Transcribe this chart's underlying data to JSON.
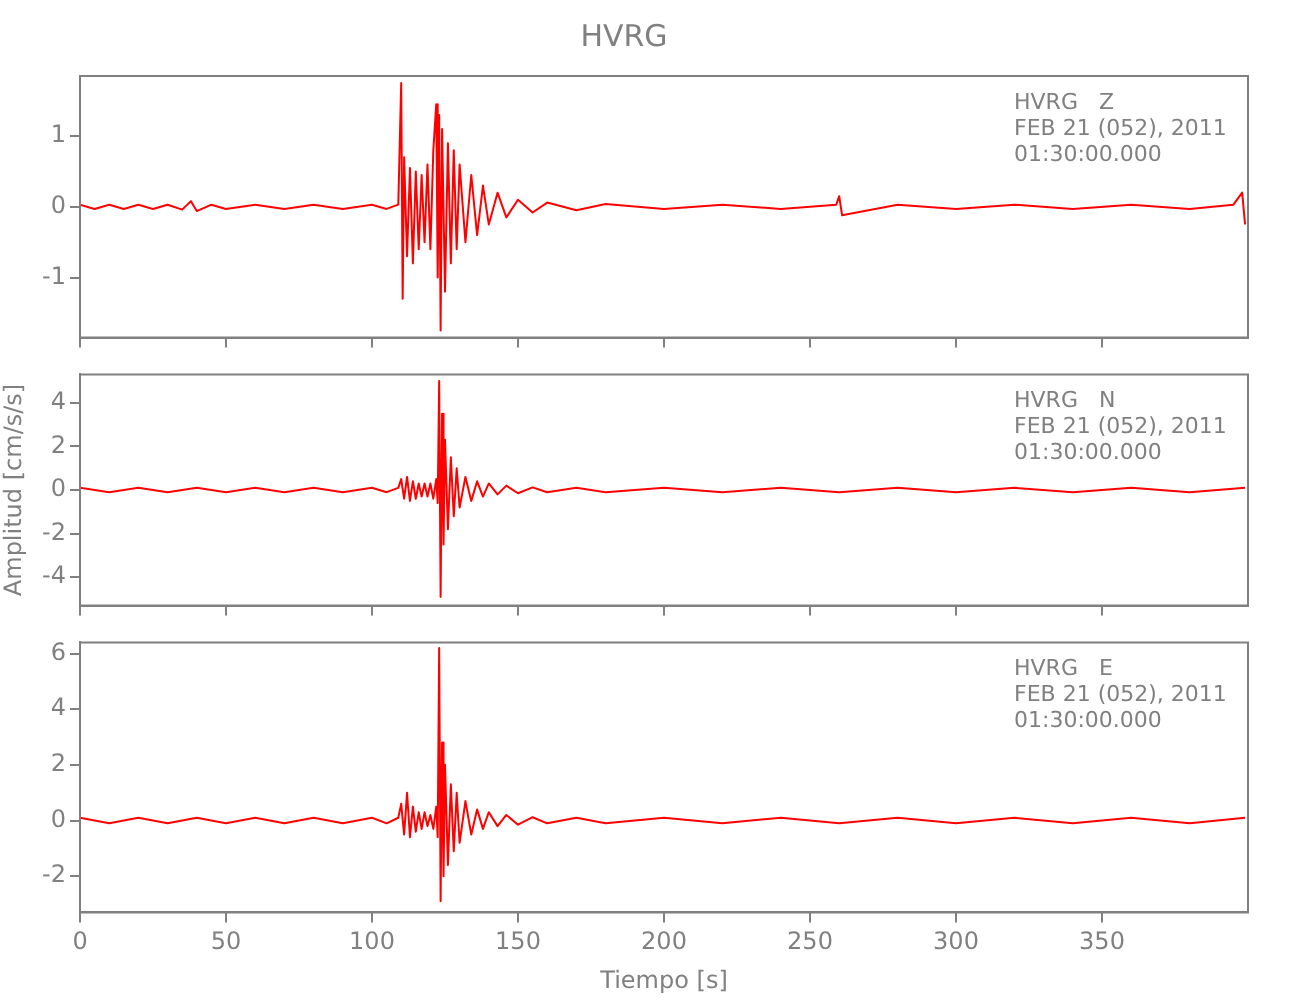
{
  "chart_data": [
    {
      "type": "line",
      "title": "HVRG",
      "annotations": [
        "HVRG   Z",
        "FEB 21 (052), 2011",
        "01:30:00.000"
      ],
      "tick_labels": "y",
      "xlim": [
        0,
        400
      ],
      "xticks": [
        0,
        50,
        100,
        150,
        200,
        250,
        300,
        350
      ],
      "ylim": [
        -1.85,
        1.85
      ],
      "yticks": [
        -1,
        0,
        1
      ],
      "series": [
        {
          "color": "#ff0000",
          "x": [
            0,
            5,
            10,
            15,
            20,
            25,
            30,
            35,
            38,
            40,
            45,
            50,
            60,
            70,
            80,
            90,
            100,
            105,
            109,
            110,
            110.5,
            111,
            112,
            113,
            114,
            115,
            116,
            117,
            118,
            119,
            120,
            121,
            122,
            122.5,
            123,
            123.5,
            124,
            125,
            126,
            127,
            128,
            129,
            130,
            132,
            134,
            136,
            138,
            140,
            143,
            146,
            150,
            155,
            160,
            170,
            180,
            200,
            220,
            240,
            259,
            260,
            261,
            280,
            300,
            320,
            340,
            360,
            380,
            395,
            398,
            399
          ],
          "values": [
            0.03,
            -0.03,
            0.03,
            -0.03,
            0.03,
            -0.03,
            0.03,
            -0.04,
            0.08,
            -0.06,
            0.03,
            -0.03,
            0.03,
            -0.03,
            0.03,
            -0.03,
            0.03,
            -0.03,
            0.03,
            1.75,
            -1.3,
            0.7,
            -0.7,
            0.55,
            -0.8,
            0.5,
            -0.6,
            0.45,
            -0.5,
            0.6,
            -0.6,
            0.8,
            1.45,
            -1.0,
            1.3,
            -1.75,
            1.1,
            -1.2,
            0.9,
            -0.8,
            0.8,
            -0.6,
            0.6,
            -0.5,
            0.45,
            -0.4,
            0.3,
            -0.25,
            0.2,
            -0.15,
            0.1,
            -0.08,
            0.06,
            -0.05,
            0.04,
            -0.03,
            0.03,
            -0.03,
            0.03,
            0.15,
            -0.12,
            0.03,
            -0.03,
            0.03,
            -0.03,
            0.03,
            -0.03,
            0.03,
            0.2,
            -0.25
          ]
        }
      ]
    },
    {
      "type": "line",
      "ylabel": "Amplitud [cm/s/s]",
      "annotations": [
        "HVRG   N",
        "FEB 21 (052), 2011",
        "01:30:00.000"
      ],
      "tick_labels": "y",
      "xlim": [
        0,
        400
      ],
      "xticks": [
        0,
        50,
        100,
        150,
        200,
        250,
        300,
        350
      ],
      "ylim": [
        -5.3,
        5.3
      ],
      "yticks": [
        -4,
        -2,
        0,
        2,
        4
      ],
      "series": [
        {
          "color": "#ff0000",
          "x": [
            0,
            10,
            20,
            30,
            40,
            50,
            60,
            70,
            80,
            90,
            100,
            105,
            109,
            110,
            111,
            112,
            113,
            114,
            115,
            116,
            117,
            118,
            119,
            120,
            121,
            122,
            122.5,
            123,
            123.5,
            124,
            124.5,
            125,
            126,
            127,
            128,
            129,
            130,
            132,
            134,
            136,
            138,
            140,
            143,
            146,
            150,
            155,
            160,
            170,
            180,
            200,
            220,
            240,
            260,
            280,
            300,
            320,
            340,
            360,
            380,
            399
          ],
          "values": [
            0.1,
            -0.1,
            0.1,
            -0.1,
            0.1,
            -0.1,
            0.1,
            -0.1,
            0.1,
            -0.1,
            0.1,
            -0.1,
            0.1,
            0.5,
            -0.4,
            0.6,
            -0.5,
            0.4,
            -0.4,
            0.3,
            -0.3,
            0.3,
            -0.3,
            0.3,
            -0.4,
            0.5,
            -0.6,
            5.0,
            -4.9,
            3.5,
            -2.5,
            2.3,
            -1.8,
            1.5,
            -1.2,
            1.0,
            -0.8,
            0.6,
            -0.5,
            0.4,
            -0.3,
            0.3,
            -0.2,
            0.2,
            -0.15,
            0.12,
            -0.1,
            0.1,
            -0.1,
            0.1,
            -0.1,
            0.1,
            -0.1,
            0.1,
            -0.1,
            0.1,
            -0.1,
            0.1,
            -0.1,
            0.1
          ]
        }
      ]
    },
    {
      "type": "line",
      "xlabel": "Tiempo [s]",
      "annotations": [
        "HVRG   E",
        "FEB 21 (052), 2011",
        "01:30:00.000"
      ],
      "xlim": [
        0,
        400
      ],
      "xticks": [
        0,
        50,
        100,
        150,
        200,
        250,
        300,
        350
      ],
      "ylim": [
        -3.3,
        6.4
      ],
      "yticks": [
        -2,
        0,
        2,
        4,
        6
      ],
      "series": [
        {
          "color": "#ff0000",
          "x": [
            0,
            10,
            20,
            30,
            40,
            50,
            60,
            70,
            80,
            90,
            100,
            105,
            109,
            110,
            111,
            112,
            113,
            114,
            115,
            116,
            117,
            118,
            119,
            120,
            121,
            122,
            122.5,
            123,
            123.5,
            124,
            124.5,
            125,
            126,
            127,
            128,
            129,
            130,
            132,
            134,
            136,
            138,
            140,
            143,
            146,
            150,
            155,
            160,
            170,
            180,
            200,
            220,
            240,
            260,
            280,
            300,
            320,
            340,
            360,
            380,
            399
          ],
          "values": [
            0.1,
            -0.1,
            0.1,
            -0.1,
            0.1,
            -0.1,
            0.1,
            -0.1,
            0.1,
            -0.1,
            0.1,
            -0.1,
            0.1,
            0.6,
            -0.5,
            1.0,
            -0.6,
            0.5,
            -0.4,
            0.3,
            -0.3,
            0.3,
            -0.2,
            0.2,
            -0.3,
            0.5,
            -0.6,
            6.2,
            -2.9,
            2.8,
            -2.0,
            2.0,
            -1.6,
            1.3,
            -1.1,
            1.0,
            -0.8,
            0.7,
            -0.5,
            0.4,
            -0.3,
            0.3,
            -0.2,
            0.2,
            -0.15,
            0.12,
            -0.1,
            0.1,
            -0.1,
            0.1,
            -0.1,
            0.1,
            -0.1,
            0.1,
            -0.1,
            0.1,
            -0.1,
            0.1,
            -0.1,
            0.1
          ]
        }
      ]
    }
  ]
}
